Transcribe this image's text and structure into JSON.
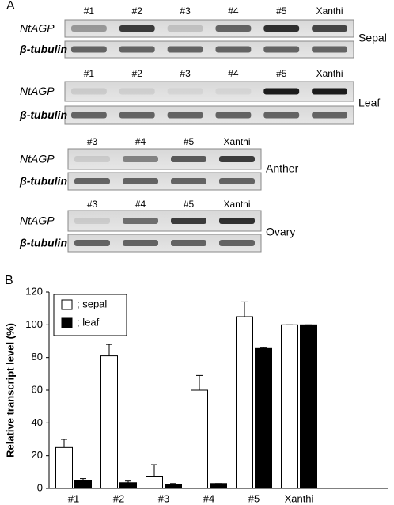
{
  "panel_labels": [
    "A",
    "B"
  ],
  "gels": [
    {
      "tissue": "Sepal",
      "lanes": [
        "#1",
        "#2",
        "#3",
        "#4",
        "#5",
        "Xanthi"
      ],
      "rows": [
        "NtAGP",
        "β-tubulin"
      ]
    },
    {
      "tissue": "Leaf",
      "lanes": [
        "#1",
        "#2",
        "#3",
        "#4",
        "#5",
        "Xanthi"
      ],
      "rows": [
        "NtAGP",
        "β-tubulin"
      ]
    },
    {
      "tissue": "Anther",
      "lanes": [
        "#3",
        "#4",
        "#5",
        "Xanthi"
      ],
      "rows": [
        "NtAGP",
        "β-tubulin"
      ]
    },
    {
      "tissue": "Ovary",
      "lanes": [
        "#3",
        "#4",
        "#5",
        "Xanthi"
      ],
      "rows": [
        "NtAGP",
        "β-tubulin"
      ]
    }
  ],
  "chart_data": {
    "type": "bar",
    "y_label": "Relative transcript level (%)",
    "categories": [
      "#1",
      "#2",
      "#3",
      "#4",
      "#5",
      "Xanthi"
    ],
    "series": [
      {
        "name": "; sepal",
        "color": "#ffffff",
        "values": [
          25,
          81,
          7.5,
          60,
          105,
          100
        ],
        "errors": [
          5,
          7,
          7,
          9,
          9,
          0
        ]
      },
      {
        "name": "; leaf",
        "color": "#000000",
        "values": [
          5,
          3.5,
          2.5,
          3,
          85.5,
          100
        ],
        "errors": [
          1,
          1,
          0.5,
          0,
          0.5,
          0
        ]
      }
    ],
    "ylim": [
      0,
      120
    ],
    "yticks": [
      0,
      20,
      40,
      60,
      80,
      100,
      120
    ],
    "legend": "top-left"
  }
}
